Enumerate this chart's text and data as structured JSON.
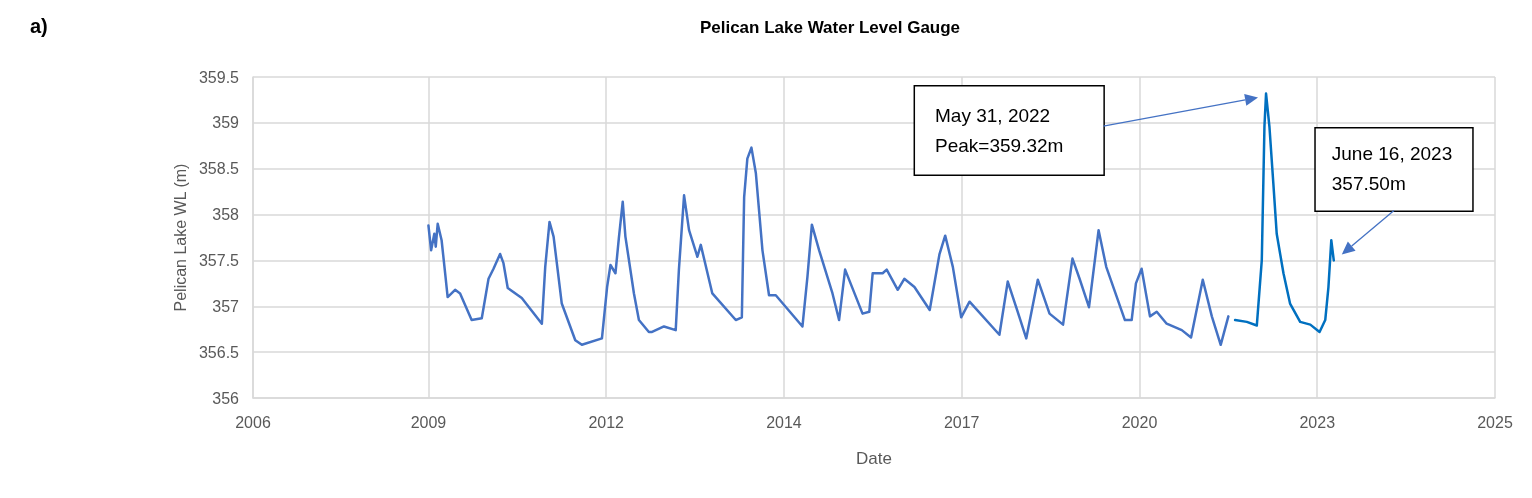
{
  "chart_data": {
    "type": "line",
    "title": "Pelican Lake Water Level Gauge",
    "xlabel": "Date",
    "ylabel": "Pelican Lake WL (m)",
    "xlim": [
      "2006-10-23",
      "2025-12-09"
    ],
    "xticks": [
      {
        "value": "2006-10-23",
        "label": "2006"
      },
      {
        "value": "2009-07-06",
        "label": "2009"
      },
      {
        "value": "2012-04-01",
        "label": "2012"
      },
      {
        "value": "2014-12-27",
        "label": "2014"
      },
      {
        "value": "2017-09-22",
        "label": "2017"
      },
      {
        "value": "2020-06-18",
        "label": "2020"
      },
      {
        "value": "2023-03-15",
        "label": "2023"
      },
      {
        "value": "2025-12-09",
        "label": "2025"
      }
    ],
    "ylim": [
      356,
      359.5
    ],
    "yticks": [
      356,
      356.5,
      357,
      357.5,
      358,
      358.5,
      359,
      359.5
    ],
    "grid": true,
    "marker": "none",
    "line_style": "solid",
    "series": [
      {
        "color": "#4472c4",
        "x": [
          "2009-07-06",
          "2009-07-21",
          "2009-08-08",
          "2009-08-16",
          "2009-08-27",
          "2009-09-18",
          "2009-10-08",
          "2009-10-22",
          "2009-12-03",
          "2009-12-31",
          "2010-03-06",
          "2010-05-02",
          "2010-06-09",
          "2010-07-07",
          "2010-08-13",
          "2010-09-01",
          "2010-09-25",
          "2010-12-13",
          "2011-04-05",
          "2011-04-24",
          "2011-05-18",
          "2011-06-10",
          "2011-07-26",
          "2011-10-10",
          "2011-11-16",
          "2012-03-08",
          "2012-04-06",
          "2012-04-25",
          "2012-05-23",
          "2012-06-11",
          "2012-07-03",
          "2012-07-18",
          "2012-09-04",
          "2012-10-02",
          "2012-11-27",
          "2012-12-15",
          "2013-02-20",
          "2013-04-27",
          "2013-05-15",
          "2013-06-13",
          "2013-07-11",
          "2013-08-27",
          "2013-09-15",
          "2013-11-19",
          "2014-03-31",
          "2014-05-04",
          "2014-05-17",
          "2014-06-04",
          "2014-06-27",
          "2014-07-22",
          "2014-08-28",
          "2014-10-04",
          "2014-11-11",
          "2015-04-10",
          "2015-05-08",
          "2015-06-02",
          "2015-07-13",
          "2015-09-26",
          "2015-11-02",
          "2015-12-06",
          "2016-03-13",
          "2016-04-20",
          "2016-05-09",
          "2016-07-04",
          "2016-07-27",
          "2016-09-27",
          "2016-11-03",
          "2016-12-30",
          "2017-03-26",
          "2017-05-20",
          "2017-06-21",
          "2017-08-03",
          "2017-09-19",
          "2017-11-05",
          "2018-04-22",
          "2018-06-08",
          "2018-08-13",
          "2018-09-20",
          "2018-11-24",
          "2019-01-29",
          "2019-04-15",
          "2019-06-07",
          "2019-07-17",
          "2019-09-08",
          "2019-11-01",
          "2019-12-14",
          "2020-03-28",
          "2020-05-05",
          "2020-05-29",
          "2020-06-30",
          "2020-08-16",
          "2020-09-23",
          "2020-11-18",
          "2021-02-11",
          "2021-04-04",
          "2021-06-09",
          "2021-07-30",
          "2021-09-18",
          "2021-10-31"
        ],
        "values": [
          357.88,
          357.61,
          357.79,
          357.65,
          357.9,
          357.72,
          357.36,
          357.1,
          357.18,
          357.14,
          356.85,
          356.87,
          357.3,
          357.41,
          357.57,
          357.47,
          357.2,
          357.09,
          356.81,
          357.43,
          357.92,
          357.76,
          357.03,
          356.63,
          356.58,
          356.65,
          357.21,
          357.45,
          357.36,
          357.74,
          358.14,
          357.76,
          357.14,
          356.85,
          356.72,
          356.72,
          356.78,
          356.74,
          357.4,
          358.21,
          357.83,
          357.54,
          357.67,
          357.14,
          356.85,
          356.88,
          358.19,
          358.61,
          358.73,
          358.45,
          357.61,
          357.12,
          357.12,
          356.78,
          357.32,
          357.89,
          357.61,
          357.14,
          356.85,
          357.4,
          356.92,
          356.94,
          357.36,
          357.36,
          357.4,
          357.18,
          357.3,
          357.21,
          356.96,
          357.57,
          357.77,
          357.43,
          356.88,
          357.05,
          356.69,
          357.27,
          356.88,
          356.65,
          357.29,
          356.92,
          356.8,
          357.52,
          357.3,
          356.99,
          357.83,
          357.43,
          356.85,
          356.85,
          357.25,
          357.41,
          356.89,
          356.94,
          356.81,
          356.74,
          356.66,
          357.29,
          356.89,
          356.58,
          356.89
        ]
      },
      {
        "color": "#0070c0",
        "x": [
          "2021-12-08",
          "2022-02-12",
          "2022-04-09",
          "2022-05-07",
          "2022-05-22",
          "2022-05-31",
          "2022-06-19",
          "2022-07-11",
          "2022-07-30",
          "2022-09-06",
          "2022-10-13",
          "2022-12-09",
          "2023-02-04",
          "2023-03-28",
          "2023-04-29",
          "2023-05-17",
          "2023-06-02",
          "2023-06-16"
        ],
        "values": [
          356.85,
          356.83,
          356.79,
          357.5,
          358.96,
          359.32,
          358.96,
          358.34,
          357.79,
          357.36,
          357.03,
          356.83,
          356.8,
          356.72,
          356.85,
          357.21,
          357.72,
          357.5
        ]
      }
    ],
    "annotations": [
      "a)",
      "May 31, 2022\nPeak=359.32m",
      "June 16, 2023\n357.50m"
    ]
  }
}
